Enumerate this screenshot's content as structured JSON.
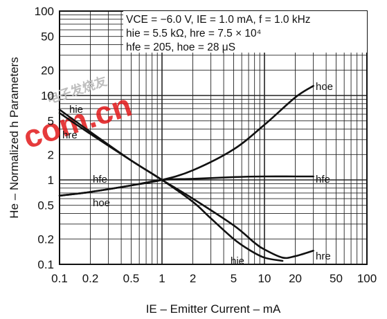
{
  "chart_data": {
    "type": "line",
    "title": "",
    "xlabel": "IE – Emitter Current – mA",
    "ylabel": "He – Normalized h Parameters",
    "x_scale": "log",
    "y_scale": "log",
    "xlim": [
      0.1,
      100
    ],
    "ylim": [
      0.1,
      100
    ],
    "grid": true,
    "x_ticks": [
      0.1,
      0.2,
      0.5,
      1,
      2,
      5,
      10,
      20,
      50,
      100
    ],
    "x_tick_labels": [
      "0.1",
      "0.2",
      "0.5",
      "1",
      "2",
      "5",
      "10",
      "20",
      "50",
      "100"
    ],
    "y_ticks": [
      0.1,
      0.2,
      0.5,
      1,
      2,
      5,
      10,
      20,
      50,
      100
    ],
    "y_tick_labels": [
      "0.1",
      "0.2",
      "0.5",
      "1",
      "2",
      "5",
      "10",
      "20",
      "50",
      "100"
    ],
    "annotations": [
      "VCE = −6.0 V, IE = 1.0 mA, f = 1.0 kHz",
      "hie = 5.5 kΩ, hre = 7.5 × 10⁴",
      "hfe = 205, hoe = 28 μS"
    ],
    "series": [
      {
        "name": "hie",
        "x": [
          0.1,
          0.2,
          0.5,
          1,
          2,
          3,
          5,
          7,
          10,
          15
        ],
        "y": [
          6.8,
          3.7,
          1.7,
          1.0,
          0.55,
          0.35,
          0.2,
          0.15,
          0.12,
          0.11
        ]
      },
      {
        "name": "hre",
        "x": [
          0.1,
          0.2,
          0.5,
          1,
          2,
          5,
          8,
          10,
          15,
          20,
          30
        ],
        "y": [
          6.2,
          3.5,
          1.7,
          1.0,
          0.6,
          0.29,
          0.18,
          0.15,
          0.12,
          0.125,
          0.145
        ]
      },
      {
        "name": "hfe",
        "x": [
          0.1,
          0.2,
          0.5,
          1,
          2,
          5,
          10,
          20,
          30
        ],
        "y": [
          0.65,
          0.72,
          0.86,
          1.0,
          1.03,
          1.08,
          1.1,
          1.1,
          1.1
        ]
      },
      {
        "name": "hoe",
        "x": [
          0.1,
          0.2,
          0.5,
          1,
          2,
          5,
          10,
          20,
          30
        ],
        "y": [
          0.65,
          0.72,
          0.86,
          1.0,
          1.3,
          2.3,
          4.5,
          9.5,
          13
        ]
      }
    ],
    "line_color": "#111111"
  },
  "watermark": {
    "text": "com.cn",
    "small_text": "电子发烧友",
    "color": "#e2191b"
  }
}
